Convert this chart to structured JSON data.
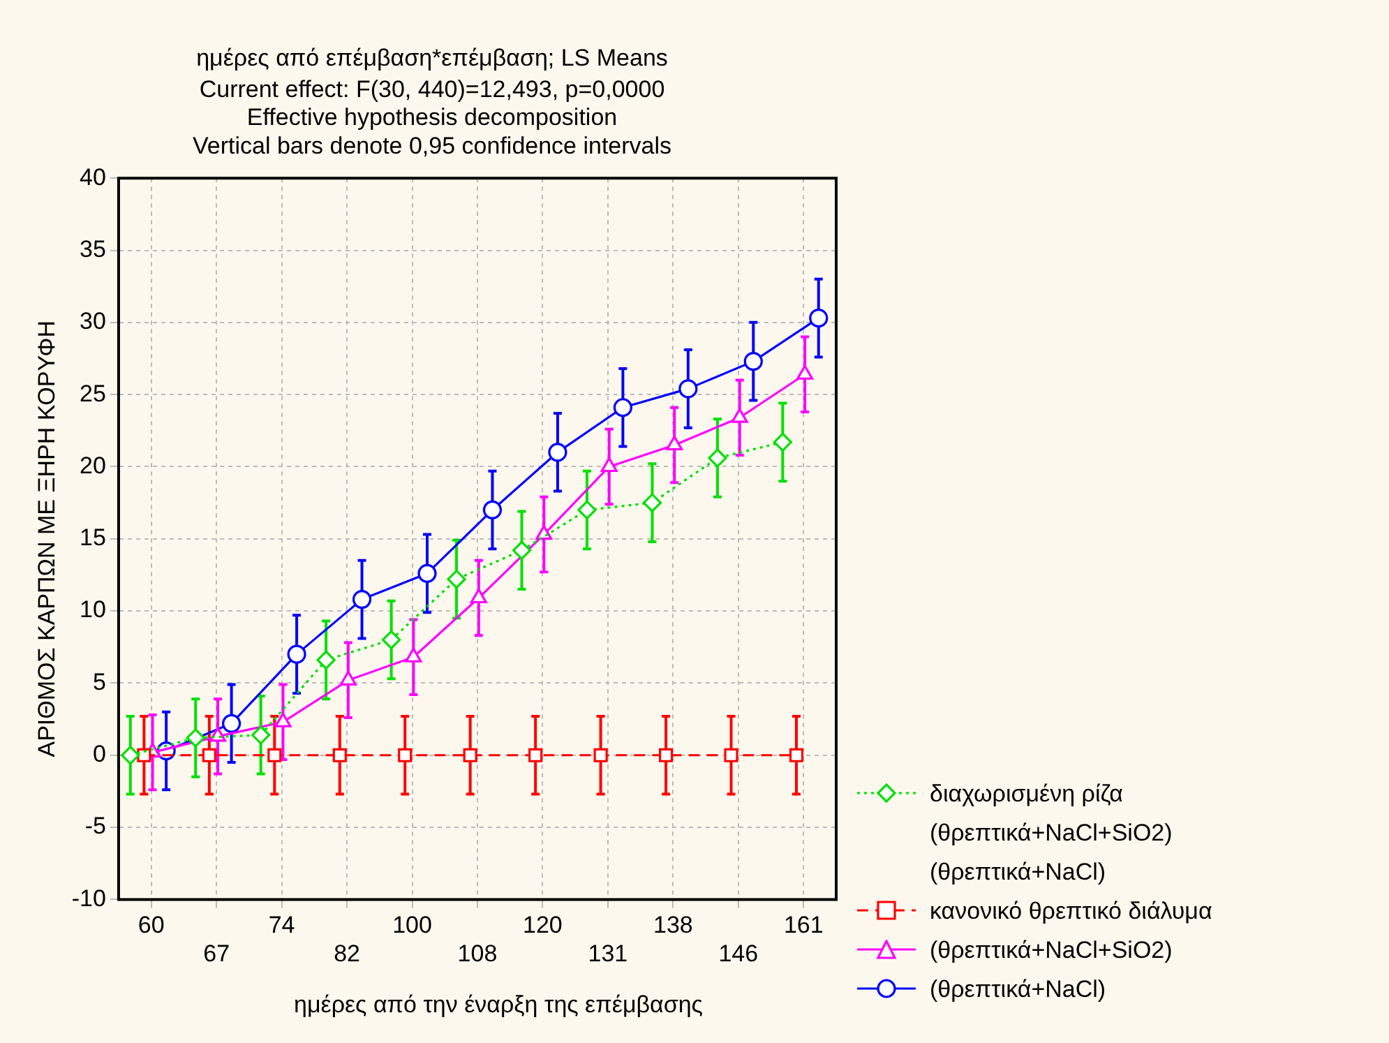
{
  "chart_data": {
    "type": "line",
    "title": "ημέρες από επέμβαση*επέμβαση; LS Means",
    "subtitle": "Current effect: F(30, 440)=12,493, p=0,0000\nEffective hypothesis decomposition\nVertical bars denote 0,95 confidence intervals",
    "xlabel": "ημέρες από την έναρξη της επέμβασης",
    "ylabel": "ΑΡΙΘΜΟΣ ΚΑΡΠΩΝ ΜΕ ΞΗΡΗ ΚΟΡΥΦΗ",
    "categories": [
      "60",
      "67",
      "74",
      "82",
      "100",
      "108",
      "120",
      "131",
      "138",
      "146",
      "161"
    ],
    "ylim": [
      -10,
      40
    ],
    "yticks": [
      -10,
      -5,
      0,
      5,
      10,
      15,
      20,
      25,
      30,
      35,
      40
    ],
    "grid": true,
    "legend": "bottom right",
    "series": [
      {
        "name": "διαχωρισμένη ρίζα (θρεπτικά+NaCl+SiO2) (θρεπτικά+NaCl)",
        "color": "#00e000",
        "marker": "diamond",
        "line_style": "dotted",
        "values": [
          0.0,
          1.2,
          1.4,
          6.6,
          8.0,
          12.2,
          14.2,
          17.0,
          17.5,
          20.6,
          21.7
        ],
        "errors": [
          2.7,
          2.7,
          2.7,
          2.7,
          2.7,
          2.7,
          2.7,
          2.7,
          2.7,
          2.7,
          2.7
        ]
      },
      {
        "name": "κανονικό θρεπτικό διάλυμα",
        "color": "#ff0000",
        "marker": "square",
        "line_style": "dashed",
        "values": [
          0,
          0,
          0,
          0,
          0,
          0,
          0,
          0,
          0,
          0,
          0
        ],
        "errors": [
          2.7,
          2.7,
          2.7,
          2.7,
          2.7,
          2.7,
          2.7,
          2.7,
          2.7,
          2.7,
          2.7
        ]
      },
      {
        "name": "(θρεπτικά+NaCl+SiO2)",
        "color": "#ff00ff",
        "marker": "triangle",
        "line_style": "solid",
        "values": [
          0.2,
          1.3,
          2.3,
          5.2,
          6.8,
          10.9,
          15.3,
          20.0,
          21.5,
          23.4,
          26.4
        ],
        "errors": [
          2.6,
          2.6,
          2.6,
          2.6,
          2.6,
          2.6,
          2.6,
          2.6,
          2.6,
          2.6,
          2.6
        ]
      },
      {
        "name": "(θρεπτικά+NaCl)",
        "color": "#0000ff",
        "marker": "circle",
        "line_style": "solid",
        "values": [
          0.3,
          2.2,
          7.0,
          10.8,
          12.6,
          17.0,
          21.0,
          24.1,
          25.4,
          27.3,
          30.3
        ],
        "errors": [
          2.7,
          2.7,
          2.7,
          2.7,
          2.7,
          2.7,
          2.7,
          2.7,
          2.7,
          2.7,
          2.7
        ]
      }
    ]
  }
}
